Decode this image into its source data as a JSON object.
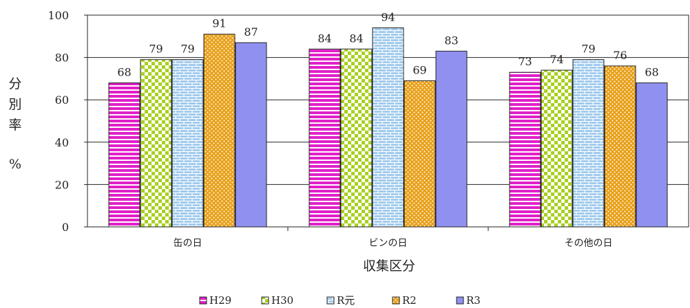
{
  "chart_data": {
    "type": "bar",
    "title": "",
    "xlabel": "収集区分",
    "ylabel": "分別率%",
    "ylabel_chars": [
      "分",
      "別",
      "率",
      "%"
    ],
    "ylim": [
      0,
      100
    ],
    "yticks": [
      0,
      20,
      40,
      60,
      80,
      100
    ],
    "grid": true,
    "legend_position": "bottom",
    "categories": [
      "缶の日",
      "ビンの日",
      "その他の日"
    ],
    "series": [
      {
        "name": "H29",
        "values": [
          68,
          84,
          73
        ],
        "color": "#e020c8",
        "pattern": "hstripes"
      },
      {
        "name": "H30",
        "values": [
          79,
          84,
          74
        ],
        "color": "#a8d020",
        "pattern": "checker"
      },
      {
        "name": "R元",
        "values": [
          79,
          94,
          79
        ],
        "color": "#9cc8ec",
        "pattern": "bricks"
      },
      {
        "name": "R2",
        "values": [
          91,
          69,
          76
        ],
        "color": "#e8a018",
        "pattern": "dots"
      },
      {
        "name": "R3",
        "values": [
          87,
          83,
          68
        ],
        "color": "#9090f0",
        "pattern": "solid"
      }
    ]
  }
}
